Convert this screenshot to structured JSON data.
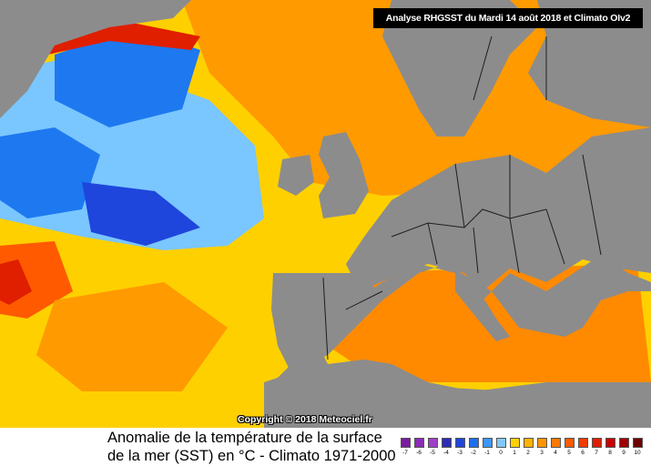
{
  "header": {
    "text": "Analyse RHGSST  du Mardi 14 août 2018 et Climato OIv2"
  },
  "copyright": "Copyright © 2018 Meteociel.fr",
  "title": {
    "line1": "Anomalie de la température de la surface",
    "line2": "de la mer (SST) en °C - Climato 1971-2000"
  },
  "legend": {
    "items": [
      {
        "label": "-7",
        "color": "#7a1aa0"
      },
      {
        "label": "-6",
        "color": "#8c2db4"
      },
      {
        "label": "-5",
        "color": "#a040c8"
      },
      {
        "label": "-4",
        "color": "#2a2ab8"
      },
      {
        "label": "-3",
        "color": "#1e46dc"
      },
      {
        "label": "-2",
        "color": "#1e6ef0"
      },
      {
        "label": "-1",
        "color": "#3c96ff"
      },
      {
        "label": "0",
        "color": "#80c8ff"
      },
      {
        "label": "1",
        "color": "#ffd200"
      },
      {
        "label": "2",
        "color": "#ffb400"
      },
      {
        "label": "3",
        "color": "#ff9600"
      },
      {
        "label": "4",
        "color": "#ff7800"
      },
      {
        "label": "5",
        "color": "#ff5a00"
      },
      {
        "label": "6",
        "color": "#f03c00"
      },
      {
        "label": "7",
        "color": "#e01e00"
      },
      {
        "label": "8",
        "color": "#c80000"
      },
      {
        "label": "9",
        "color": "#a00000"
      },
      {
        "label": "10",
        "color": "#700000"
      }
    ]
  },
  "colors": {
    "land": "#8c8c8c",
    "border": "#1e1e1e"
  }
}
